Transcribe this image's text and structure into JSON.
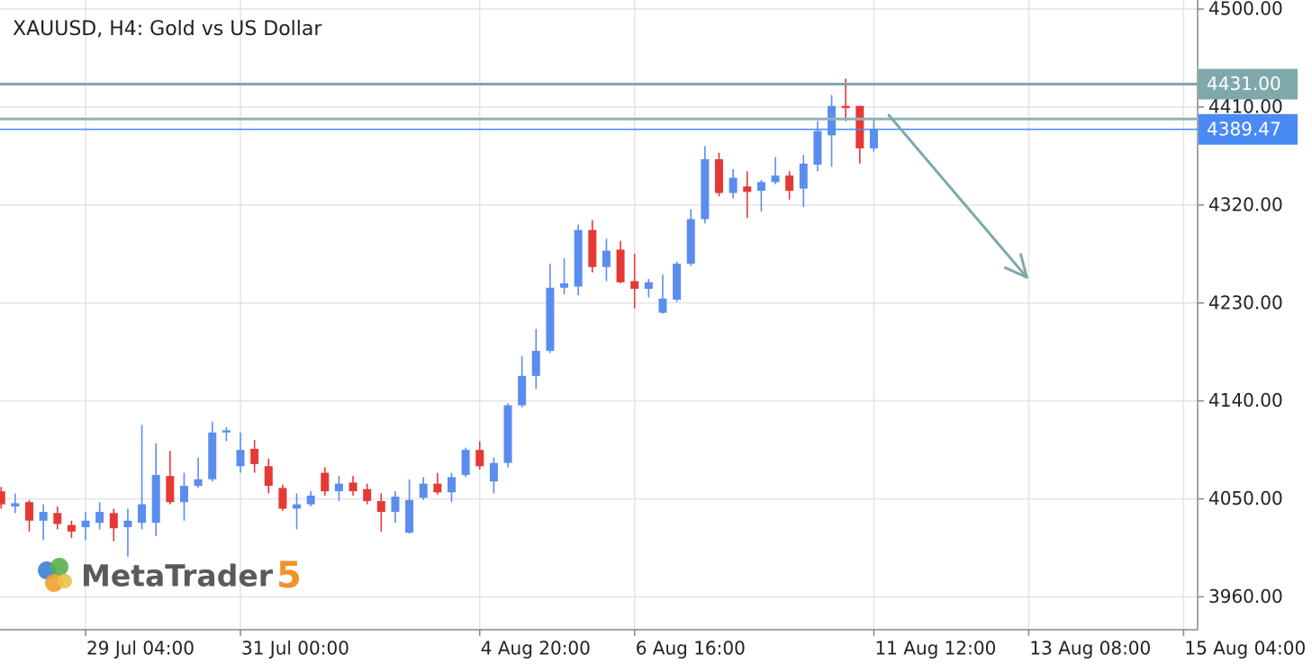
{
  "chart_data": {
    "type": "candlestick",
    "title": "XAUUSD, H4: Gold vs US Dollar",
    "watermark": {
      "name": "MetaTrader",
      "version": "5"
    },
    "up_color": "#5b8def",
    "down_color": "#e53935",
    "grid": true,
    "open": [
      4057,
      4043,
      4047,
      4030,
      4037,
      4026,
      4024,
      4028,
      4037,
      4024,
      4028,
      4028,
      4071,
      4047,
      4062,
      4068,
      4111,
      4080,
      4096,
      4080,
      4060,
      4041,
      4045,
      4074,
      4057,
      4065,
      4059,
      4048,
      4038,
      4019,
      4051,
      4064,
      4056,
      4072,
      4095,
      4066,
      4083,
      4136,
      4163,
      4186,
      4244,
      4245,
      4297,
      4263,
      4279,
      4250,
      4243,
      4221,
      4233,
      4266,
      4307,
      4362,
      4331,
      4337,
      4333,
      4341,
      4347,
      4335,
      4357,
      4384,
      4411,
      4411,
      4372
    ],
    "high": [
      4061,
      4055,
      4049,
      4045,
      4043,
      4030,
      4038,
      4047,
      4041,
      4041,
      4118,
      4101,
      4094,
      4074,
      4088,
      4121,
      4116,
      4111,
      4104,
      4087,
      4063,
      4055,
      4057,
      4079,
      4071,
      4071,
      4064,
      4055,
      4057,
      4068,
      4070,
      4074,
      4074,
      4097,
      4103,
      4088,
      4138,
      4181,
      4206,
      4266,
      4271,
      4302,
      4306,
      4289,
      4287,
      4275,
      4252,
      4256,
      4268,
      4316,
      4374,
      4368,
      4353,
      4351,
      4343,
      4364,
      4351,
      4366,
      4397,
      4421,
      4436,
      4411,
      4398
    ],
    "low": [
      4041,
      4037,
      4020,
      4012,
      4022,
      4014,
      4012,
      4022,
      4011,
      3997,
      4022,
      4016,
      4045,
      4030,
      4060,
      4066,
      4103,
      4074,
      4074,
      4055,
      4039,
      4022,
      4043,
      4053,
      4048,
      4053,
      4045,
      4020,
      4028,
      4018,
      4049,
      4054,
      4047,
      4070,
      4077,
      4055,
      4079,
      4134,
      4151,
      4184,
      4238,
      4237,
      4258,
      4250,
      4248,
      4225,
      4235,
      4220,
      4231,
      4264,
      4303,
      4328,
      4326,
      4308,
      4314,
      4339,
      4325,
      4318,
      4351,
      4355,
      4397,
      4358,
      4369
    ],
    "close": [
      4045,
      4046,
      4030,
      4038,
      4027,
      4020,
      4030,
      4038,
      4023,
      4030,
      4045,
      4072,
      4047,
      4062,
      4068,
      4111,
      4113,
      4095,
      4082,
      4062,
      4041,
      4045,
      4053,
      4057,
      4064,
      4057,
      4048,
      4038,
      4052,
      4049,
      4064,
      4056,
      4070,
      4095,
      4080,
      4083,
      4136,
      4163,
      4186,
      4244,
      4248,
      4297,
      4263,
      4278,
      4249,
      4243,
      4249,
      4234,
      4266,
      4307,
      4362,
      4331,
      4345,
      4332,
      4341,
      4347,
      4333,
      4358,
      4388,
      4411,
      4409,
      4372,
      4389.47
    ],
    "xlim": [
      -0.08,
      85
    ],
    "xticks": [
      {
        "value": 6,
        "label": "29 Jul 04:00"
      },
      {
        "value": 17,
        "label": "31 Jul 00:00"
      },
      {
        "value": 34,
        "label": "4 Aug 20:00"
      },
      {
        "value": 45,
        "label": "6 Aug 16:00"
      },
      {
        "value": 62,
        "label": "11 Aug 12:00"
      },
      {
        "value": 73,
        "label": "13 Aug 08:00"
      },
      {
        "value": 84,
        "label": "15 Aug 04:00"
      }
    ],
    "ylim": [
      3929.8,
      4508.3
    ],
    "yticks": [
      {
        "value": 3960,
        "label": "3960.00"
      },
      {
        "value": 4050,
        "label": "4050.00"
      },
      {
        "value": 4140,
        "label": "4140.00"
      },
      {
        "value": 4230,
        "label": "4230.00"
      },
      {
        "value": 4320,
        "label": "4320.00"
      },
      {
        "value": 4410,
        "label": "4410.00"
      },
      {
        "value": 4500,
        "label": "4500.00"
      }
    ],
    "levels": [
      {
        "value": 4431,
        "label": "4431.00",
        "color": "#7fa8ab"
      },
      {
        "value": 4399,
        "color": "#8fb3b5"
      }
    ],
    "bid": {
      "value": 4389.47,
      "label": "4389.47",
      "color": "#4a8af4"
    },
    "trend_arrow": {
      "x": [
        63.07,
        72.86
      ],
      "y": [
        4402.4,
        4253.6
      ],
      "color": "#7fa8ab"
    }
  }
}
